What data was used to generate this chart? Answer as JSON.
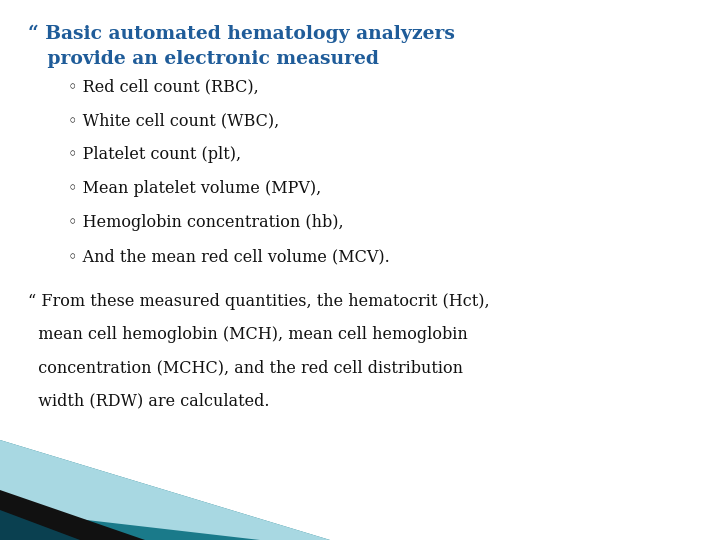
{
  "background_color": "#ffffff",
  "bullet1_color": "#1f5c99",
  "sub_bullet_color": "#111111",
  "bullet2_color": "#111111",
  "title_fontsize": 13.5,
  "sub_fontsize": 11.5,
  "body_fontsize": 11.5,
  "heading_line1": "“ Basic automated hematology analyzers",
  "heading_line2": "   provide an electronic measured",
  "sub_bullets": [
    "◦ Red cell count (RBC),",
    "◦ White cell count (WBC),",
    "◦ Platelet count (plt),",
    "◦ Mean platelet volume (MPV),",
    "◦ Hemoglobin concentration (hb),",
    "◦ And the mean red cell volume (MCV)."
  ],
  "bullet2_lines": [
    "“ From these measured quantities, the hematocrit (Hct),",
    "  mean cell hemoglobin (MCH), mean cell hemoglobin",
    "  concentration (MCHC), and the red cell distribution",
    "  width (RDW) are calculated."
  ],
  "teal_dark_color": "#1a7a8a",
  "teal_light_color": "#a8d8e0",
  "black_color": "#111111"
}
